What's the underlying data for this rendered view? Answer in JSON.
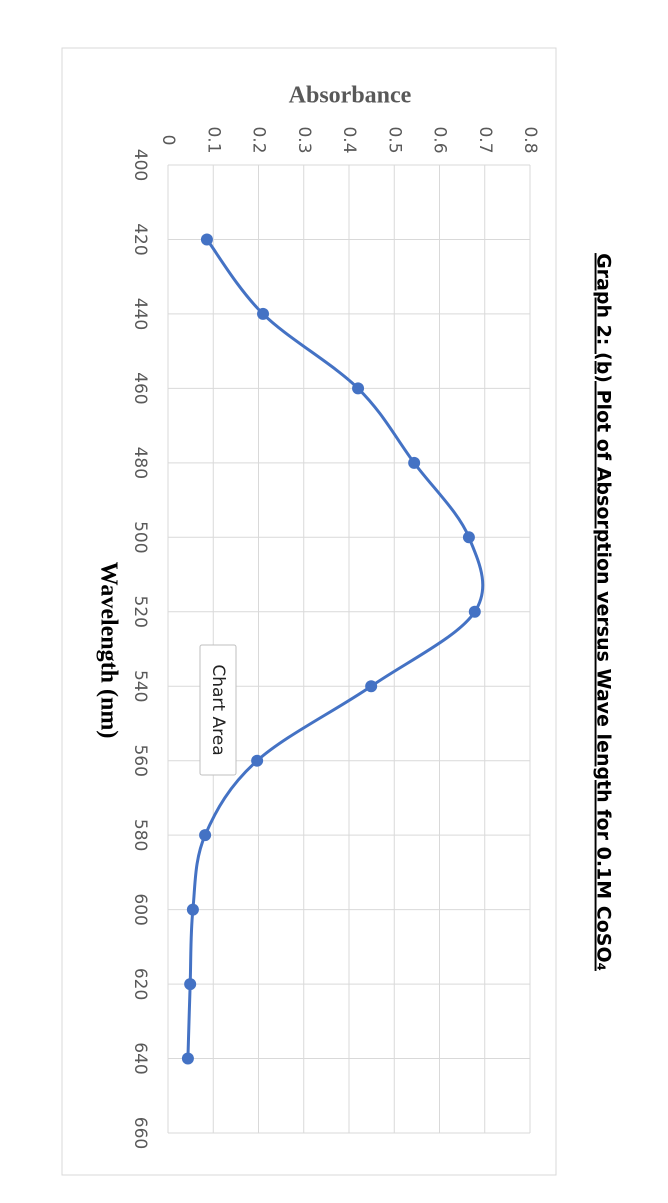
{
  "chart_data": {
    "type": "line",
    "title": "Graph 2: (b) Plot of Absorption versus Wave length for 0.1M CoSO₄",
    "x_label": "Wavelength (nm)",
    "y_label": "Absorbance",
    "x": [
      420,
      440,
      460,
      480,
      500,
      520,
      540,
      560,
      580,
      600,
      620,
      640
    ],
    "series": [
      {
        "name": "Absorbance",
        "color": "#4472c4",
        "values": [
          0.086,
          0.21,
          0.42,
          0.544,
          0.665,
          0.678,
          0.449,
          0.197,
          0.082,
          0.055,
          0.049,
          0.044
        ]
      }
    ],
    "xlim": [
      400,
      660
    ],
    "xticks": [
      400,
      420,
      440,
      460,
      480,
      500,
      520,
      540,
      560,
      580,
      600,
      620,
      640,
      660
    ],
    "ylim": [
      0,
      0.8
    ],
    "yticks": [
      0,
      0.1,
      0.2,
      0.3,
      0.4,
      0.5,
      0.6,
      0.7,
      0.8
    ],
    "grid": true,
    "smooth": true
  },
  "tooltip": "Chart Area"
}
